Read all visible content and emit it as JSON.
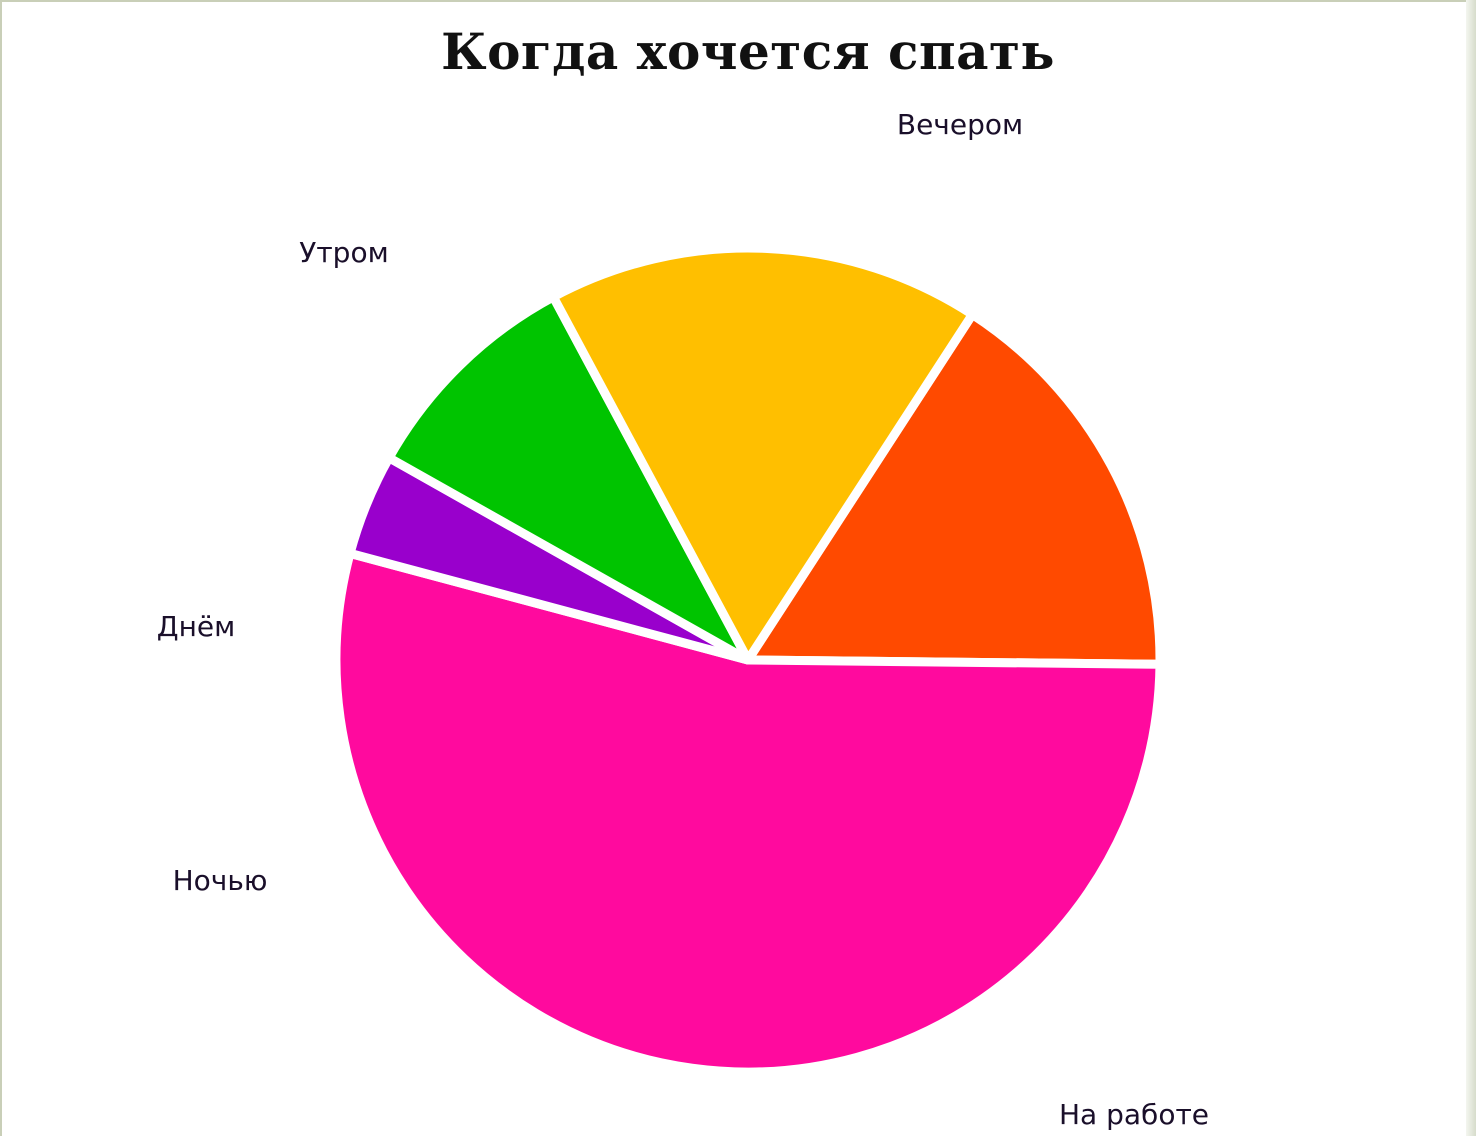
{
  "chart_data": {
    "type": "pie",
    "title": "Когда хочется спать",
    "slices": [
      {
        "label": "Вечером",
        "value": 16,
        "color": "#ff4a00"
      },
      {
        "label": "На работе",
        "value": 54,
        "color": "#ff0a9e"
      },
      {
        "label": "Ночью",
        "value": 4,
        "color": "#9900cc"
      },
      {
        "label": "Днём",
        "value": 9,
        "color": "#00c400"
      },
      {
        "label": "Утром",
        "value": 17,
        "color": "#ffbf00"
      }
    ]
  }
}
